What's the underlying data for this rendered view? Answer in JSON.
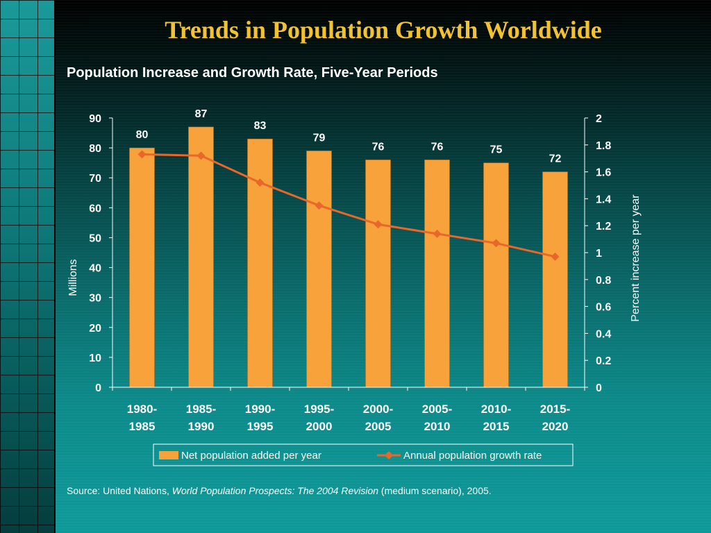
{
  "title": "Trends in Population Growth Worldwide",
  "subtitle": "Population Increase and Growth Rate, Five-Year Periods",
  "source": {
    "prefix": "Source: United Nations, ",
    "publication": "World Population Prospects: The 2004 Revision",
    "suffix": " (medium scenario), 2005."
  },
  "colors": {
    "title": "#f2c230",
    "bar": "#f7a23b",
    "line": "#e8672a",
    "text": "#ffffff"
  },
  "chart_data": {
    "type": "bar+line",
    "categories": [
      [
        "1980-",
        "1985"
      ],
      [
        "1985-",
        "1990"
      ],
      [
        "1990-",
        "1995"
      ],
      [
        "1995-",
        "2000"
      ],
      [
        "2000-",
        "2005"
      ],
      [
        "2005-",
        "2010"
      ],
      [
        "2010-",
        "2015"
      ],
      [
        "2015-",
        "2020"
      ]
    ],
    "series": [
      {
        "name": "Net population added per year",
        "type": "bar",
        "axis": "left",
        "values": [
          80,
          87,
          83,
          79,
          76,
          76,
          75,
          72
        ],
        "data_labels": [
          "80",
          "87",
          "83",
          "79",
          "76",
          "76",
          "75",
          "72"
        ]
      },
      {
        "name": "Annual population growth rate",
        "type": "line",
        "axis": "right",
        "values": [
          1.73,
          1.72,
          1.52,
          1.35,
          1.21,
          1.14,
          1.07,
          0.97
        ]
      }
    ],
    "ylabel": "Millions",
    "y2label": "Percent increase per year",
    "ylim": [
      0,
      90
    ],
    "y2lim": [
      0,
      2
    ],
    "yticks": [
      "0",
      "10",
      "20",
      "30",
      "40",
      "50",
      "60",
      "70",
      "80",
      "90"
    ],
    "y2ticks": [
      "0",
      "0.2",
      "0.4",
      "0.6",
      "0.8",
      "1",
      "1.2",
      "1.4",
      "1.6",
      "1.8",
      "2"
    ],
    "legend_position": "bottom"
  }
}
